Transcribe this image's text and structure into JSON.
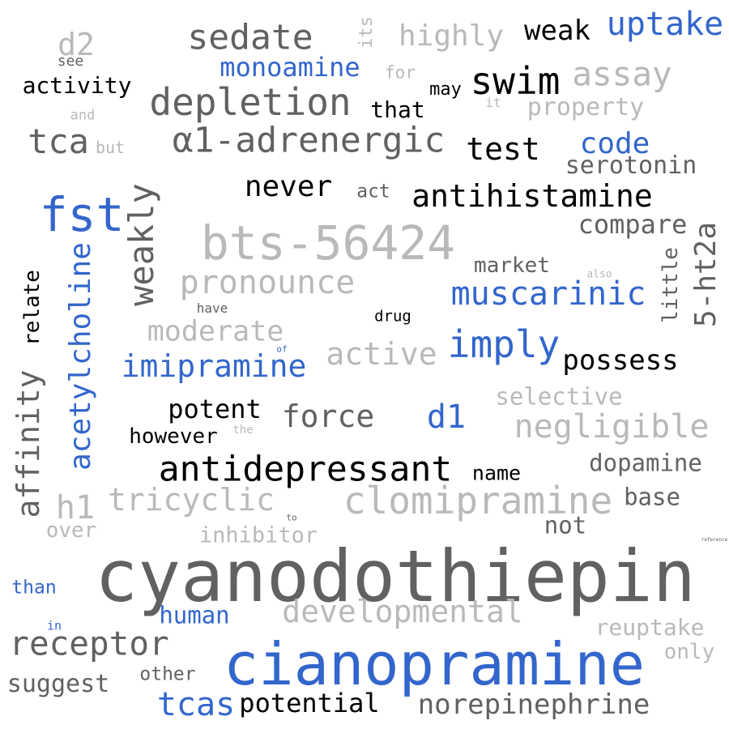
{
  "colors": {
    "black": "#000000",
    "dark_gray": "#616161",
    "light_gray": "#b9b9b9",
    "blue": "#3366cc",
    "background": "#ffffff"
  },
  "words": {
    "cyanodothiepin": "cyanodothiepin",
    "cianopramine": "cianopramine",
    "bts_56424": "bts-56424",
    "antidepressant": "antidepressant",
    "alpha1_adrenergic": "α1-adrenergic",
    "depletion": "depletion",
    "sedate": "sedate",
    "uptake": "uptake",
    "fst": "fst",
    "weakly": "weakly",
    "clomipramine": "clomipramine",
    "receptor": "receptor",
    "swim": "swim",
    "antihistamine": "antihistamine",
    "imipramine": "imipramine",
    "acetylcholine": "acetylcholine",
    "affinity": "affinity",
    "negligible": "negligible",
    "developmental": "developmental",
    "muscarinic": "muscarinic",
    "pronounce": "pronounce",
    "imply": "imply",
    "tricyclic": "tricyclic",
    "assay": "assay",
    "test": "test",
    "tca": "tca",
    "monoamine": "monoamine",
    "active": "active",
    "moderate": "moderate",
    "possess": "possess",
    "highly": "highly",
    "force": "force",
    "norepinephrine": "norepinephrine",
    "ht2a": "5-ht2a",
    "tcas": "tcas",
    "potential": "potential",
    "compare": "compare",
    "code": "code",
    "serotonin": "serotonin",
    "never": "never",
    "weak": "weak",
    "d1": "d1",
    "d2": "d2",
    "potent": "potent",
    "dopamine": "dopamine",
    "selective": "selective",
    "reuptake": "reuptake",
    "property": "property",
    "h1": "h1",
    "inhibitor": "inhibitor",
    "suggest": "suggest",
    "human": "human",
    "activity": "activity",
    "however": "however",
    "base": "base",
    "not": "not",
    "that": "that",
    "market": "market",
    "little": "little",
    "relate": "relate",
    "name": "name",
    "only": "only",
    "over": "over",
    "than": "than",
    "other": "other",
    "act": "act",
    "may": "may",
    "its": "its",
    "for": "for",
    "but": "but",
    "see": "see",
    "drug": "drug",
    "have": "have",
    "and": "and",
    "it": "it",
    "the": "the",
    "also": "also",
    "of": "of",
    "to": "to",
    "in": "in",
    "reference": "reference"
  }
}
